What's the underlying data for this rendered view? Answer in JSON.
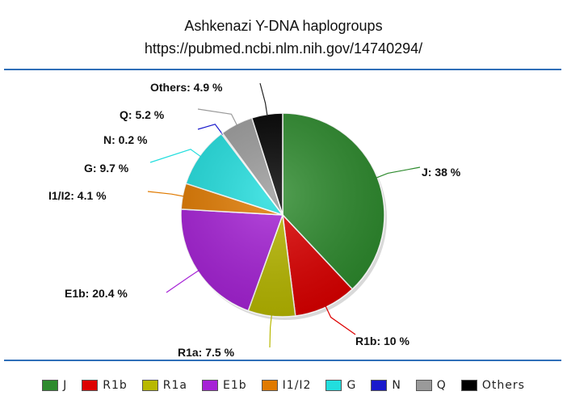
{
  "chart_data": {
    "type": "pie",
    "title": "Ashkenazi Y-DNA haplogroups",
    "subtitle": "https://pubmed.ncbi.nlm.nih.gov/14740294/",
    "legend_position": "bottom",
    "slices": [
      {
        "name": "J",
        "value": 38,
        "label": "J: 38 %",
        "color": "#2e8b2e"
      },
      {
        "name": "R1b",
        "value": 10,
        "label": "R1b: 10 %",
        "color": "#dd0000"
      },
      {
        "name": "R1a",
        "value": 7.5,
        "label": "R1a: 7.5 %",
        "color": "#b8b800"
      },
      {
        "name": "E1b",
        "value": 20.4,
        "label": "E1b: 20.4 %",
        "color": "#a622d6"
      },
      {
        "name": "I1/I2",
        "value": 4.1,
        "label": "I1/I2: 4.1 %",
        "color": "#e07a00"
      },
      {
        "name": "G",
        "value": 9.7,
        "label": "G: 9.7 %",
        "color": "#22dede"
      },
      {
        "name": "N",
        "value": 0.2,
        "label": "N: 0.2 %",
        "color": "#1a1acc"
      },
      {
        "name": "Q",
        "value": 5.2,
        "label": "Q: 5.2 %",
        "color": "#9a9a9a"
      },
      {
        "name": "Others",
        "value": 4.9,
        "label": "Others: 4.9 %",
        "color": "#000000"
      }
    ]
  }
}
